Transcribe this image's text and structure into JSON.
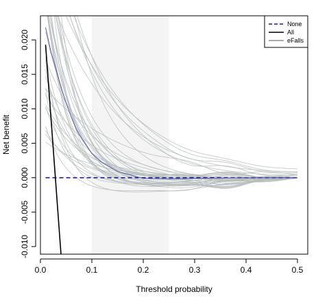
{
  "chart_data": {
    "type": "line",
    "xlabel": "Threshold probability",
    "ylabel": "Net benefit",
    "xlim": [
      0,
      0.52
    ],
    "ylim": [
      -0.0111,
      0.0235
    ],
    "x_ticks": [
      0.0,
      0.1,
      0.2,
      0.3,
      0.4,
      0.5
    ],
    "x_tick_labels": [
      "0.0",
      "0.1",
      "0.2",
      "0.3",
      "0.4",
      "0.5"
    ],
    "y_ticks": [
      -0.01,
      -0.005,
      0.0,
      0.005,
      0.01,
      0.015,
      0.02
    ],
    "y_tick_labels": [
      "-0.010",
      "-0.005",
      "0.000",
      "0.005",
      "0.010",
      "0.015",
      "0.020"
    ],
    "shaded_region": {
      "x_from": 0.1,
      "x_to": 0.25,
      "color": "#f4f4f4"
    },
    "legend": {
      "position": "top-right",
      "entries": [
        {
          "label": "None",
          "style": "dashed",
          "color": "#1a1a8c"
        },
        {
          "label": "All",
          "style": "solid",
          "color": "#000000"
        },
        {
          "label": "eFalls",
          "style": "solid",
          "color": "#555555"
        }
      ]
    },
    "series": [
      {
        "name": "None",
        "color": "#1a1a8c",
        "style": "dashed",
        "x": [
          0.01,
          0.5
        ],
        "y": [
          0.0,
          0.0
        ]
      },
      {
        "name": "All",
        "color": "#000000",
        "style": "solid",
        "x": [
          0.01,
          0.04
        ],
        "y": [
          0.0193,
          -0.0111
        ]
      },
      {
        "name": "eFalls",
        "color": "#5555aa",
        "style": "solid",
        "x": [
          0.01,
          0.02,
          0.03,
          0.04,
          0.05,
          0.06,
          0.07,
          0.08,
          0.1,
          0.12,
          0.15,
          0.2,
          0.25,
          0.3,
          0.4,
          0.5
        ],
        "y": [
          0.0218,
          0.0184,
          0.0158,
          0.0132,
          0.0108,
          0.0088,
          0.007,
          0.0057,
          0.0035,
          0.0022,
          0.0009,
          -0.0001,
          -0.0002,
          -0.0001,
          0.0,
          0.0
        ]
      }
    ],
    "bootstrap_curves": {
      "color": "#b4bcbc",
      "description_count": 40
    }
  }
}
